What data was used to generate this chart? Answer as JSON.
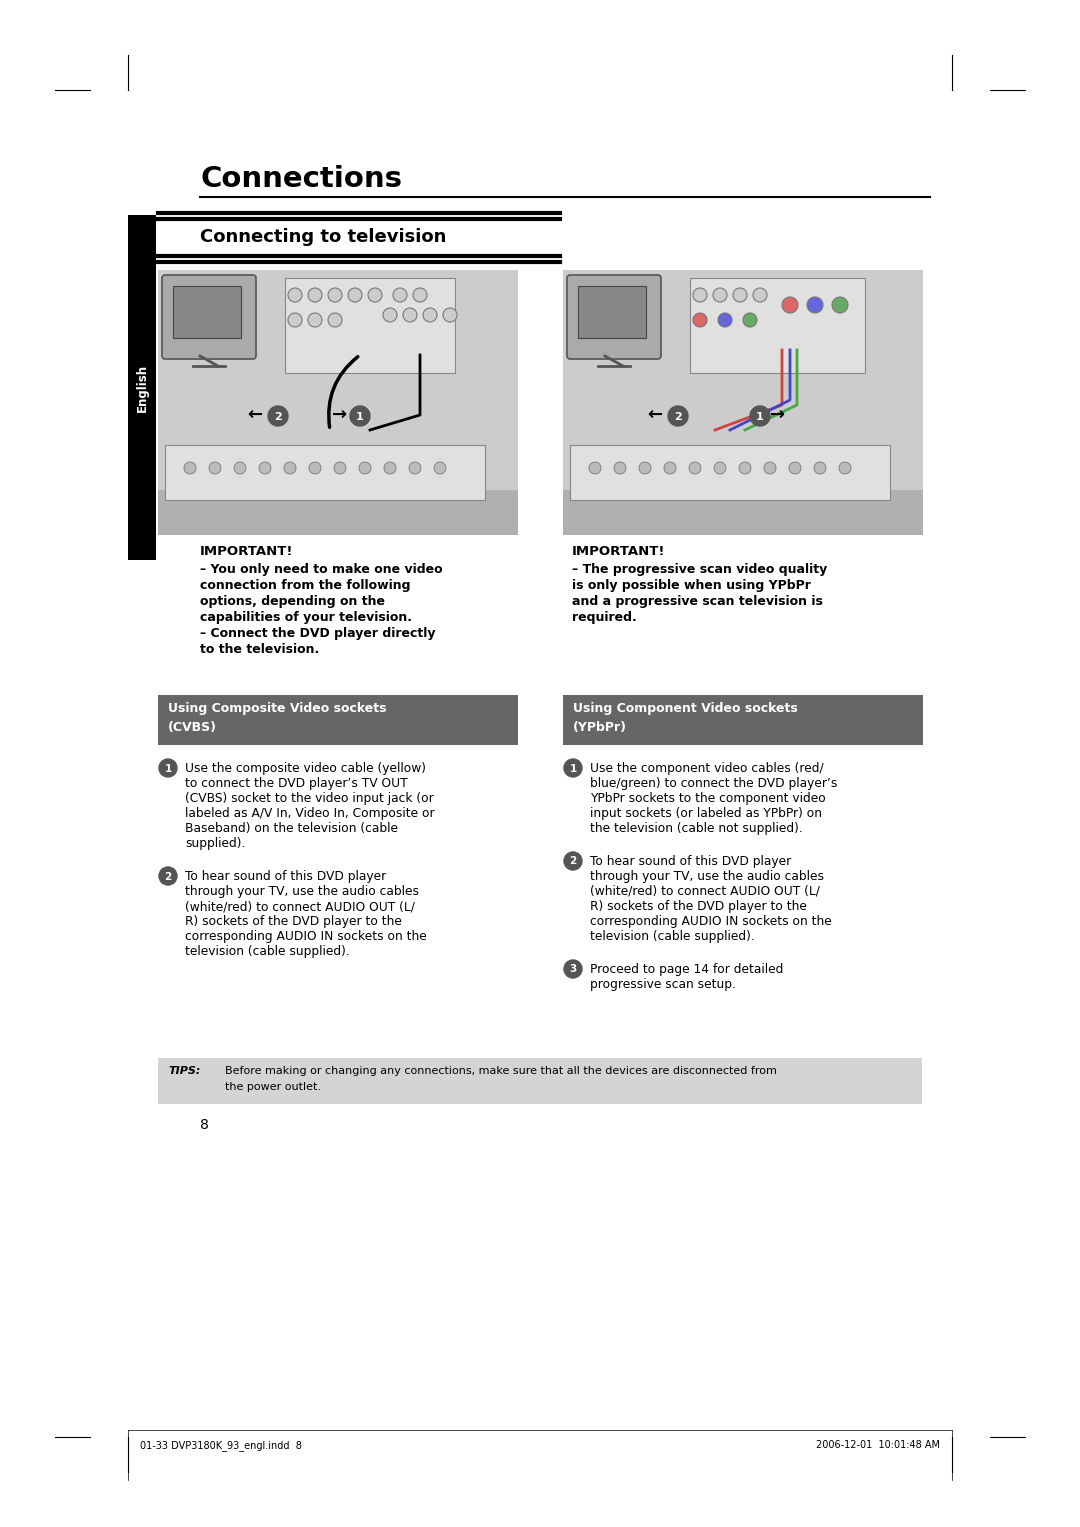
{
  "page_bg": "#ffffff",
  "title": "Connections",
  "section_title": "Connecting to television",
  "sidebar_text": "English",
  "sidebar_bg": "#000000",
  "sidebar_text_color": "#ffffff",
  "image_bg": "#cccccc",
  "image_bg_dark": "#b0b0b0",
  "section_header_bg": "#666666",
  "section_header_text_color": "#ffffff",
  "tips_bg": "#d4d4d4",
  "page_number": "8",
  "footer_left": "01-33 DVP3180K_93_engl.indd  8",
  "footer_right": "2006-12-01  10:01:48 AM",
  "left_section_header_line1": "Using Composite Video sockets",
  "left_section_header_line2": "(CVBS)",
  "right_section_header_line1": "Using Component Video sockets",
  "right_section_header_line2": "(YPbPr)",
  "important_left_title": "IMPORTANT!",
  "important_left_body_lines": [
    "– You only need to make one video",
    "connection from the following",
    "options, depending on the",
    "capabilities of your television.",
    "– Connect the DVD player directly",
    "to the television."
  ],
  "important_right_title": "IMPORTANT!",
  "important_right_body_lines": [
    "– The progressive scan video quality",
    "is only possible when using YPbPr",
    "and a progressive scan television is",
    "required."
  ],
  "cvbs_step1_lines": [
    "Use the composite video cable (yellow)",
    "to connect the DVD player’s TV OUT",
    "(CVBS) socket to the video input jack (or",
    "labeled as A/V In, Video In, Composite or",
    "Baseband) on the television (cable",
    "supplied)."
  ],
  "cvbs_step2_lines": [
    "To hear sound of this DVD player",
    "through your TV, use the audio cables",
    "(white/red) to connect AUDIO OUT (L/",
    "R) sockets of the DVD player to the",
    "corresponding AUDIO IN sockets on the",
    "television (cable supplied)."
  ],
  "ypbpr_step1_lines": [
    "Use the component video cables (red/",
    "blue/green) to connect the DVD player’s",
    "YPbPr sockets to the component video",
    "input sockets (or labeled as YPbPr) on",
    "the television (cable not supplied)."
  ],
  "ypbpr_step2_lines": [
    "To hear sound of this DVD player",
    "through your TV, use the audio cables",
    "(white/red) to connect AUDIO OUT (L/",
    "R) sockets of the DVD player to the",
    "corresponding AUDIO IN sockets on the",
    "television (cable supplied)."
  ],
  "ypbpr_step3_lines": [
    "Proceed to page 14 for detailed",
    "progressive scan setup."
  ],
  "tips_label": "TIPS:",
  "tips_text_line1": "Before making or changing any connections, make sure that all the devices are disconnected from",
  "tips_text_line2": "the power outlet."
}
